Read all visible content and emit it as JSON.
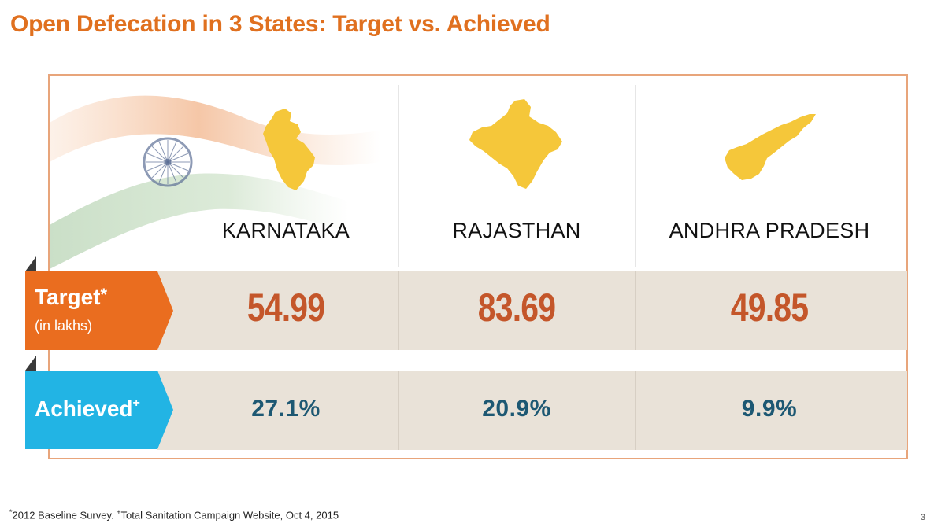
{
  "title": "Open Defecation in 3 States: Target vs. Achieved",
  "states": [
    {
      "name": "KARNATAKA",
      "target": "54.99",
      "achieved": "27.1%"
    },
    {
      "name": "RAJASTHAN",
      "target": "83.69",
      "achieved": "20.9%"
    },
    {
      "name": "ANDHRA PRADESH",
      "target": "49.85",
      "achieved": "9.9%"
    }
  ],
  "rows": {
    "target_label": "Target",
    "target_mark": "*",
    "target_sub": "(in lakhs)",
    "achieved_label": "Achieved",
    "achieved_mark": "+"
  },
  "footnote": {
    "mark1": "*",
    "text1": "2012 Baseline Survey.",
    "mark2": "+",
    "text2": "Total Sanitation Campaign Website, Oct 4, 2015"
  },
  "page_number": "3",
  "colors": {
    "title": "#e0701f",
    "target_tag": "#ea6d1f",
    "achieved_tag": "#1fb0e0",
    "target_value": "#c4562a",
    "achieved_value": "#1d5873",
    "map_fill": "#f5c73a",
    "band": "#e9e2d8"
  },
  "icons": [
    "india-flag-graphic",
    "karnataka-map-icon",
    "rajasthan-map-icon",
    "andhra-pradesh-map-icon"
  ]
}
